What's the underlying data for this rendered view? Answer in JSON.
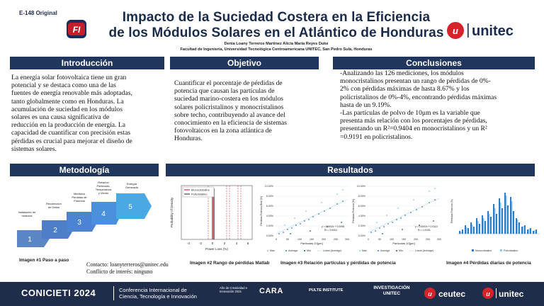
{
  "header": {
    "code": "E-148 Original",
    "title_line1": "Impacto de la Suciedad Costera en la Eficiencia",
    "title_line2": "de los Módulos Solares en el Atlántico de Honduras",
    "authors": "Denia Loany Terreros Martínez  Alicia María Reyes Duke",
    "affiliation": "Facultad de Ingeniería, Universidad Tecnológica Centroamericana UNITEC, San Pedro Sula, Honduras",
    "fi_logo_text": "FI",
    "unitec_logo_text": "unitec",
    "colors": {
      "navy": "#20365c",
      "red": "#d6232a"
    }
  },
  "intro": {
    "heading": "Introducción",
    "lines": [
      "La energía solar fotovoltaica tiene un gran",
      "potencial y se destaca como una de las",
      "fuentes de energía renovable más adoptadas,",
      "tanto globalmente como en Honduras. La",
      "acumulación de suciedad en los módulos",
      "solares es una causa significativa de",
      "reducción en la producción de energía. La",
      "capacidad de cuantificar con precisión estas",
      "pérdidas es crucial para mejorar el diseño de",
      "sistemas solares."
    ]
  },
  "objective": {
    "heading": "Objetivo",
    "lines": [
      "Cuantificar el porcentaje de pérdidas de",
      "potencia que causan las partículas de",
      "suciedad marino-costera en los módulos",
      "solares policristalinos y monocristalinos",
      "sobre techo, contribuyendo al avance del",
      "conocimiento en la eficiencia de sistemas",
      "fotovoltaicos en la zona atlántica de",
      "Honduras."
    ]
  },
  "conclusions": {
    "heading": "Conclusiones",
    "lines": [
      "-Analizando las 126 mediciones, los módulos",
      "monocristalinos presentan un rango de pérdidas de 0%-",
      "2% con pérdidas máximas de hasta 8.67% y los",
      "policristalinos de 0%-4%, encontrando pérdidas máximas",
      "hasta de un 9.19%.",
      "-Las partículas de polvo de 10μm es la variable que",
      "presenta más relación con los porcentajes de pérdidas,",
      "presentando un R²=0.9404 en monocristalinos  y un R²",
      "=0.9191 en policristalinos."
    ]
  },
  "methodology": {
    "heading": "Metodología",
    "steps": [
      {
        "num": "1",
        "label": "Instalación de\nmódulos"
      },
      {
        "num": "2",
        "label": "Recolección\nde Datos"
      },
      {
        "num": "3",
        "label": "Medición\nPérdidas de\nPotencia"
      },
      {
        "num": "4",
        "label": "Relación\nPartículas,\nTemperatura\ny Viento"
      },
      {
        "num": "5",
        "label": "Energía\nGenerada"
      }
    ],
    "caption": "Imagen #1 Paso a paso",
    "contact": "Contacto: loanyterreros@unitec.edu",
    "conflict": "Conflicto de interés: ninguno"
  },
  "results": {
    "heading": "Resultados",
    "caption2": "Imagen #2 Rango de pérdidas Matlab",
    "caption3": "Imagen #3 Relación partículas y pérdidas de potencia",
    "caption4": "Imagen #4 Pérdidas diarias de potencia",
    "fig2": {
      "legend": [
        "Monocristalino",
        "Policristalino"
      ],
      "ylabel": "Probability of Density",
      "xlabel": "Power Loss (%)",
      "xticks": [
        "-4",
        "-2",
        "0",
        "2",
        "4",
        "6"
      ]
    },
    "fig3a": {
      "xlabel": "Partículas 10[μm]",
      "ylabel": "Pérdidas Potencia Real [%]",
      "yticks": [
        "10.00%",
        "8.00%",
        "6.00%",
        "4.00%",
        "2.00%",
        "0.00%"
      ],
      "xticks": [
        "0",
        "50",
        "100",
        "150",
        "200",
        "250",
        "300"
      ],
      "eq": "y = 0.0002x + 0.0098",
      "r2": "R² = 0.9404",
      "legend": [
        "Max",
        "Average",
        "Min",
        "Lineal (Average)"
      ]
    },
    "fig3b": {
      "xlabel": "Partículas 10[μm]",
      "ylabel": "Pérdidas Potencia [%]",
      "yticks": [
        "10.00%",
        "8.00%",
        "6.00%",
        "4.00%",
        "2.00%",
        "0.00%"
      ],
      "xticks": [
        "0",
        "50",
        "100",
        "150",
        "200",
        "250",
        "300"
      ],
      "eq": "y = 0.0002x + 0.0113",
      "r2": "R² = 0.9191",
      "legend": [
        "Max",
        "Average",
        "Min",
        "Lineal (Average)"
      ]
    },
    "fig4": {
      "ylabel": "Pérdidas Potencia (%)",
      "legend": [
        "Monocristalino",
        "Policristalino"
      ]
    }
  },
  "footer": {
    "title": "CONICIETI 2024",
    "sub1": "Conferencia Internacional de",
    "sub2": "Ciencia, Tecnología e Innovación",
    "logos": [
      "Año de Creatividad e Innovación 2024",
      "CARA",
      "PULTE INSTITUTE",
      "INVESTIGACIÓN UNITEC",
      "ceutec",
      "unitec"
    ]
  }
}
